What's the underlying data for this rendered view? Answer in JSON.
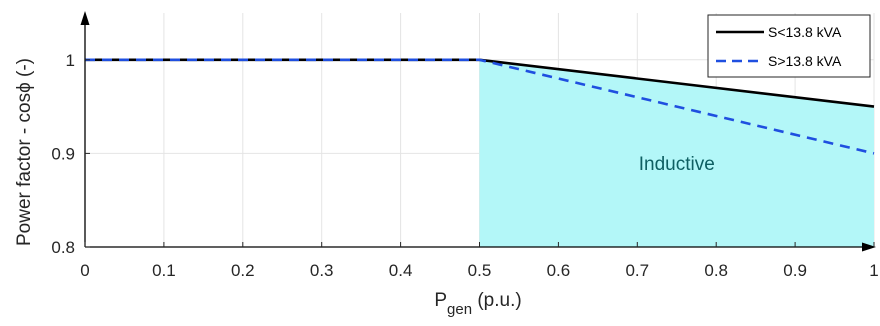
{
  "chart_data": {
    "type": "line",
    "xlabel_main": "P",
    "xlabel_sub": "gen",
    "xlabel_unit": " (p.u.)",
    "ylabel": "Power factor - cosϕ (-)",
    "xlim": [
      0,
      1
    ],
    "ylim": [
      0.8,
      1.05
    ],
    "x_ticks": [
      0,
      0.1,
      0.2,
      0.3,
      0.4,
      0.5,
      0.6,
      0.7,
      0.8,
      0.9,
      1
    ],
    "x_tick_labels": [
      "0",
      "0.1",
      "0.2",
      "0.3",
      "0.4",
      "0.5",
      "0.6",
      "0.7",
      "0.8",
      "0.9",
      "1"
    ],
    "y_ticks": [
      0.8,
      0.9,
      1
    ],
    "y_tick_labels": [
      "0.8",
      "0.9",
      "1"
    ],
    "grid": true,
    "legend_position": "top-right",
    "series": [
      {
        "name": "S<13.8 kVA",
        "color": "#000000",
        "style": "solid",
        "x": [
          0,
          0.5,
          1
        ],
        "y": [
          1,
          1,
          0.95
        ]
      },
      {
        "name": "S>13.8 kVA",
        "color": "#1f4fe0",
        "style": "dashed",
        "x": [
          0,
          0.5,
          1
        ],
        "y": [
          1,
          1,
          0.9
        ]
      }
    ],
    "shaded_region": {
      "label": "Inductive",
      "fill": "#b3f7f8",
      "text_color": "#0e5f62",
      "x": [
        0.5,
        1
      ],
      "y_top": [
        1,
        0.95
      ],
      "y_bottom": 0.8
    }
  }
}
